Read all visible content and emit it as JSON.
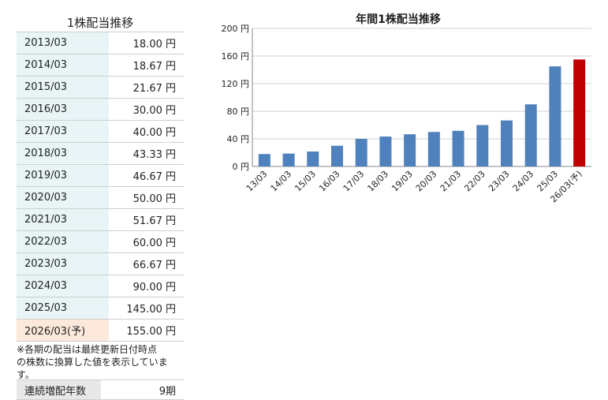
{
  "table": {
    "title": "1株配当推移",
    "rows": [
      {
        "period": "2013/03",
        "amount": "18.00 円"
      },
      {
        "period": "2014/03",
        "amount": "18.67 円"
      },
      {
        "period": "2015/03",
        "amount": "21.67 円"
      },
      {
        "period": "2016/03",
        "amount": "30.00 円"
      },
      {
        "period": "2017/03",
        "amount": "40.00 円"
      },
      {
        "period": "2018/03",
        "amount": "43.33 円"
      },
      {
        "period": "2019/03",
        "amount": "46.67 円"
      },
      {
        "period": "2020/03",
        "amount": "50.00 円"
      },
      {
        "period": "2021/03",
        "amount": "51.67 円"
      },
      {
        "period": "2022/03",
        "amount": "60.00 円"
      },
      {
        "period": "2023/03",
        "amount": "66.67 円"
      },
      {
        "period": "2024/03",
        "amount": "90.00 円"
      },
      {
        "period": "2025/03",
        "amount": "145.00 円"
      },
      {
        "period": "2026/03(予)",
        "amount": "155.00 円"
      }
    ],
    "note_line1": "※各期の配当は最終更新日付時点",
    "note_line2": "の株数に換算した値を表示しています。"
  },
  "streak": {
    "label": "連続増配年数",
    "value": "9期"
  },
  "colors": {
    "bar": "#4f81bd",
    "forecast_bar": "#c00000",
    "period_bg": "#e8f4f6",
    "forecast_bg": "#fde9dc"
  },
  "chart_data": {
    "type": "bar",
    "title": "年間1株配当推移",
    "categories": [
      "13/03",
      "14/03",
      "15/03",
      "16/03",
      "17/03",
      "18/03",
      "19/03",
      "20/03",
      "21/03",
      "22/03",
      "23/03",
      "24/03",
      "25/03",
      "26/03(予)"
    ],
    "values": [
      18.0,
      18.67,
      21.67,
      30.0,
      40.0,
      43.33,
      46.67,
      50.0,
      51.67,
      60.0,
      66.67,
      90.0,
      145.0,
      155.0
    ],
    "highlight_index": 13,
    "y_ticks": [
      "0 円",
      "40 円",
      "80 円",
      "120 円",
      "160 円",
      "200 円"
    ],
    "y_tick_values": [
      0,
      40,
      80,
      120,
      160,
      200
    ],
    "ylim": [
      0,
      200
    ],
    "grid": true
  }
}
